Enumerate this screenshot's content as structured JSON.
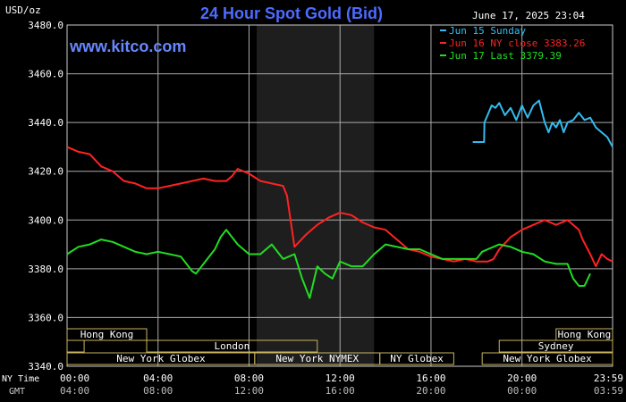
{
  "header": {
    "title": "24 Hour Spot Gold (Bid)",
    "unit_label": "USD/oz",
    "timestamp": "June 17, 2025 23:04",
    "watermark": "www.kitco.com"
  },
  "legend": [
    {
      "label": "Jun 15 Sunday",
      "color": "#33bbee"
    },
    {
      "label": "Jun 16 NY close 3383.26",
      "color": "#ff2222"
    },
    {
      "label": "Jun 17 Last 3379.39",
      "color": "#22dd22"
    }
  ],
  "markets": {
    "row1": [
      {
        "label": "Hong Kong",
        "start": "00:00",
        "end": "03:30"
      },
      {
        "label": "Hong Kong",
        "start": "21:30",
        "end": "24:00"
      }
    ],
    "row2": [
      {
        "label": "",
        "start": "00:00",
        "end": "00:45"
      },
      {
        "label": "London",
        "start": "03:30",
        "end": "11:00"
      },
      {
        "label": "Sydney",
        "start": "19:00",
        "end": "24:00"
      }
    ],
    "row3": [
      {
        "label": "New York Globex",
        "start": "00:00",
        "end": "08:15"
      },
      {
        "label": "New York NYMEX",
        "start": "08:15",
        "end": "13:45"
      },
      {
        "label": "NY Globex",
        "start": "13:45",
        "end": "17:00"
      },
      {
        "label": "New York Globex",
        "start": "18:15",
        "end": "24:00"
      }
    ]
  },
  "time_rows": {
    "ny_label": "NY Time",
    "gmt_label": "GMT",
    "ny_ticks": [
      "00:00",
      "04:00",
      "08:00",
      "12:00",
      "16:00",
      "20:00",
      "23:59"
    ],
    "gmt_ticks": [
      "04:00",
      "08:00",
      "12:00",
      "16:00",
      "20:00",
      "00:00",
      "03:59"
    ]
  },
  "colors": {
    "background": "#000000",
    "grid": "#aaaaaa",
    "title": "#4d6bff",
    "watermark": "#6688ff",
    "session_fill": "#1e1e1e",
    "market_box": "#c8b560"
  },
  "chart_data": {
    "type": "line",
    "title": "24 Hour Spot Gold (Bid)",
    "ylabel": "USD/oz",
    "ylim": [
      3340,
      3480
    ],
    "yticks": [
      "3340.0",
      "3360.0",
      "3380.0",
      "3400.0",
      "3420.0",
      "3440.0",
      "3460.0",
      "3480.0"
    ],
    "xlim": [
      "00:00",
      "23:59"
    ],
    "shaded_session": {
      "start": "08:20",
      "end": "13:30"
    },
    "grid": true,
    "legend_position": "top-right",
    "series": [
      {
        "name": "Jun 15 Sunday",
        "color": "#33bbee",
        "x": [
          "17:50",
          "18:20",
          "18:21",
          "18:40",
          "18:50",
          "19:00",
          "19:15",
          "19:30",
          "19:45",
          "20:00",
          "20:15",
          "20:30",
          "20:45",
          "21:00",
          "21:10",
          "21:20",
          "21:30",
          "21:40",
          "21:50",
          "22:00",
          "22:15",
          "22:30",
          "22:45",
          "23:00",
          "23:15",
          "23:30",
          "23:45",
          "23:59"
        ],
        "values": [
          3432,
          3432,
          3440,
          3447,
          3446,
          3448,
          3443,
          3446,
          3441,
          3447,
          3442,
          3447,
          3449,
          3440,
          3436,
          3440,
          3438,
          3441,
          3436,
          3440,
          3441,
          3444,
          3441,
          3442,
          3438,
          3436,
          3434,
          3430
        ]
      },
      {
        "name": "Jun 16 NY close 3383.26",
        "color": "#ff2222",
        "x": [
          "00:00",
          "00:30",
          "01:00",
          "01:30",
          "02:00",
          "02:30",
          "03:00",
          "03:30",
          "04:00",
          "04:30",
          "05:00",
          "05:30",
          "06:00",
          "06:30",
          "07:00",
          "07:15",
          "07:30",
          "08:00",
          "08:30",
          "09:00",
          "09:30",
          "09:40",
          "10:00",
          "10:30",
          "11:00",
          "11:30",
          "12:00",
          "12:30",
          "13:00",
          "13:30",
          "14:00",
          "14:30",
          "15:00",
          "15:30",
          "16:00",
          "16:30",
          "17:00",
          "17:30",
          "18:00",
          "18:30",
          "18:45",
          "19:00",
          "19:30",
          "20:00",
          "20:30",
          "21:00",
          "21:30",
          "22:00",
          "22:30",
          "22:40",
          "23:00",
          "23:15",
          "23:30",
          "23:45",
          "23:59"
        ],
        "values": [
          3430,
          3428,
          3427,
          3422,
          3420,
          3416,
          3415,
          3413,
          3413,
          3414,
          3415,
          3416,
          3417,
          3416,
          3416,
          3418,
          3421,
          3419,
          3416,
          3415,
          3414,
          3410,
          3389,
          3394,
          3398,
          3401,
          3403,
          3402,
          3399,
          3397,
          3396,
          3392,
          3388,
          3387,
          3385,
          3384,
          3383,
          3384,
          3383,
          3383,
          3384,
          3388,
          3393,
          3396,
          3398,
          3400,
          3398,
          3400,
          3396,
          3392,
          3386,
          3381,
          3386,
          3384,
          3383
        ]
      },
      {
        "name": "Jun 17 Last 3379.39",
        "color": "#22dd22",
        "x": [
          "00:00",
          "00:30",
          "01:00",
          "01:30",
          "02:00",
          "02:30",
          "03:00",
          "03:30",
          "04:00",
          "04:30",
          "05:00",
          "05:30",
          "05:40",
          "06:00",
          "06:30",
          "06:45",
          "07:00",
          "07:30",
          "08:00",
          "08:30",
          "09:00",
          "09:30",
          "10:00",
          "10:20",
          "10:40",
          "11:00",
          "11:20",
          "11:40",
          "12:00",
          "12:30",
          "13:00",
          "13:30",
          "14:00",
          "14:30",
          "15:00",
          "15:30",
          "16:00",
          "16:30",
          "17:00",
          "17:30",
          "18:00",
          "18:15",
          "18:30",
          "19:00",
          "19:30",
          "20:00",
          "20:30",
          "21:00",
          "21:30",
          "22:00",
          "22:15",
          "22:30",
          "22:45",
          "23:00"
        ],
        "values": [
          3386,
          3389,
          3390,
          3392,
          3391,
          3389,
          3387,
          3386,
          3387,
          3386,
          3385,
          3379,
          3378,
          3382,
          3388,
          3393,
          3396,
          3390,
          3386,
          3386,
          3390,
          3384,
          3386,
          3376,
          3368,
          3381,
          3378,
          3376,
          3383,
          3381,
          3381,
          3386,
          3390,
          3389,
          3388,
          3388,
          3386,
          3384,
          3384,
          3384,
          3384,
          3387,
          3388,
          3390,
          3389,
          3387,
          3386,
          3383,
          3382,
          3382,
          3376,
          3373,
          3373,
          3378
        ]
      }
    ]
  }
}
